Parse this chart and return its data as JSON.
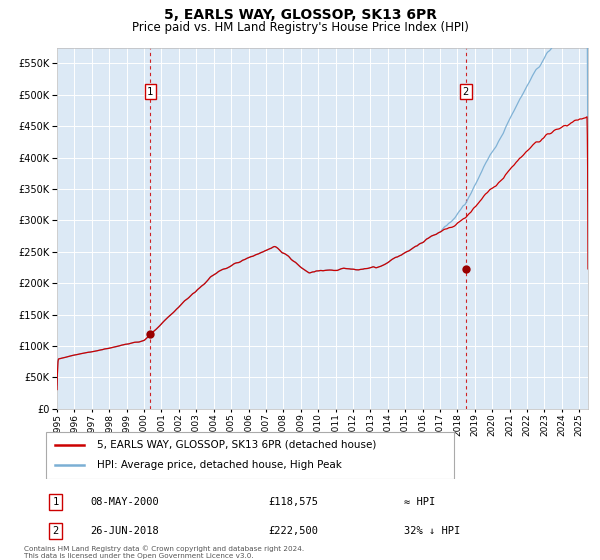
{
  "title": "5, EARLS WAY, GLOSSOP, SK13 6PR",
  "subtitle": "Price paid vs. HM Land Registry's House Price Index (HPI)",
  "background_color": "#ffffff",
  "plot_bg_color": "#dce9f5",
  "hpi_color": "#7bafd4",
  "price_color": "#cc0000",
  "marker_color": "#990000",
  "vline_color": "#cc0000",
  "grid_color": "#ffffff",
  "transactions": [
    {
      "date_num": 2000.36,
      "price": 118575,
      "label": "1",
      "date_str": "08-MAY-2000",
      "note": "≈ HPI"
    },
    {
      "date_num": 2018.48,
      "price": 222500,
      "label": "2",
      "date_str": "26-JUN-2018",
      "note": "32% ↓ HPI"
    }
  ],
  "legend_line1": "5, EARLS WAY, GLOSSOP, SK13 6PR (detached house)",
  "legend_line2": "HPI: Average price, detached house, High Peak",
  "footnote": "Contains HM Land Registry data © Crown copyright and database right 2024.\nThis data is licensed under the Open Government Licence v3.0.",
  "ylim": [
    0,
    575000
  ],
  "xlim_start": 1995.0,
  "xlim_end": 2025.5,
  "ytick_interval": 50000,
  "label_box_color": "#ffffff",
  "label_box_edge": "#cc0000",
  "title_fontsize": 10,
  "subtitle_fontsize": 8.5
}
